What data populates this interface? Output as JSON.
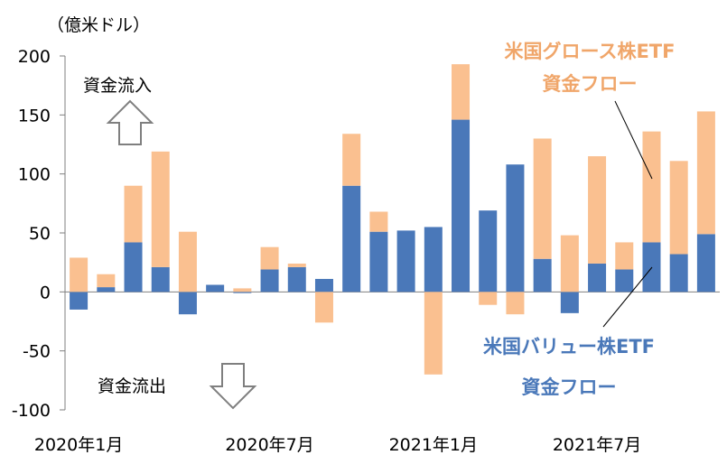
{
  "chart_data": {
    "type": "bar",
    "stacked": true,
    "unit_label": "（億米ドル）",
    "ylim": [
      -100,
      200
    ],
    "yticks": [
      200,
      150,
      100,
      50,
      0,
      -50,
      -100
    ],
    "x_tick_labels": [
      "2020年1月",
      "2020年7月",
      "2021年1月",
      "2021年7月"
    ],
    "x_tick_positions": [
      0,
      7,
      13,
      19
    ],
    "grid": false,
    "months": [
      "2020-01",
      "2020-02",
      "2020-03",
      "2020-04",
      "2020-05",
      "2020-06",
      "2020-07",
      "2020-08",
      "2020-09",
      "2020-10",
      "2020-11",
      "2020-12",
      "2021-01",
      "2021-02",
      "2021-03",
      "2021-04",
      "2021-05",
      "2021-06",
      "2021-07",
      "2021-08",
      "2021-09",
      "2021-10",
      "2021-11",
      "2021-12"
    ],
    "series": [
      {
        "name": "米国バリュー株ETF資金フロー",
        "color": "#4a78b9",
        "values": [
          -15,
          4,
          42,
          21,
          -19,
          6,
          -1,
          19,
          21,
          11,
          90,
          51,
          52,
          55,
          146,
          69,
          108,
          28,
          -18,
          24,
          19,
          42,
          32,
          49
        ]
      },
      {
        "name": "米国グロース株ETF資金フロー",
        "color": "#fac090",
        "values": [
          29,
          11,
          48,
          98,
          51,
          0,
          3,
          19,
          3,
          -26,
          44,
          17,
          0,
          -70,
          47,
          -11,
          -19,
          102,
          48,
          91,
          23,
          94,
          79,
          104
        ]
      }
    ],
    "annotations": {
      "inflow": "資金流入",
      "outflow": "資金流出",
      "growth_line1": "米国グロース株ETF",
      "growth_line2": "資金フロー",
      "value_line1": "米国バリュー株ETF",
      "value_line2": "資金フロー"
    }
  }
}
